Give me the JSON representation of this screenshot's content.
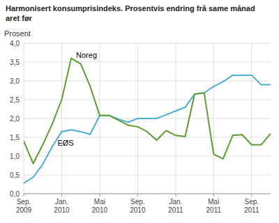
{
  "chart_data": {
    "type": "line",
    "title": "Harmonisert konsumprisindeks. Prosentvis endring frå same månad\naret før",
    "y_label": "Prosent",
    "categories": [
      "Sep.\n2009",
      null,
      null,
      null,
      "Jan.\n2010",
      null,
      null,
      null,
      "Mai\n2010",
      null,
      null,
      null,
      "Sep.\n2010",
      null,
      null,
      null,
      "Jan.\n2011",
      null,
      null,
      null,
      "Mai\n2011",
      null,
      null,
      null,
      "Sep.\n2011",
      null,
      null
    ],
    "series": [
      {
        "name": "EØS",
        "color": "#4bacd6",
        "values": [
          0.28,
          0.44,
          0.78,
          1.25,
          1.65,
          1.7,
          1.65,
          1.58,
          2.08,
          2.08,
          1.98,
          1.9,
          2.0,
          2.0,
          2.0,
          2.1,
          2.2,
          2.3,
          2.65,
          2.68,
          2.85,
          2.98,
          3.15,
          3.15,
          3.15,
          2.9,
          2.9
        ]
      },
      {
        "name": "Noreg",
        "color": "#5a9e2f",
        "values": [
          1.4,
          0.8,
          1.3,
          1.85,
          2.5,
          3.6,
          3.45,
          2.85,
          2.08,
          2.08,
          1.95,
          1.82,
          1.78,
          1.65,
          1.42,
          1.68,
          1.55,
          1.52,
          2.65,
          2.68,
          1.05,
          0.93,
          1.55,
          1.57,
          1.3,
          1.3,
          1.6
        ]
      }
    ],
    "ylim": [
      0.0,
      4.0
    ],
    "yticks": [
      {
        "value": 0.0,
        "label": "0,0"
      },
      {
        "value": 0.5,
        "label": "0,5"
      },
      {
        "value": 1.0,
        "label": "1,0"
      },
      {
        "value": 1.5,
        "label": "1,5"
      },
      {
        "value": 2.0,
        "label": "2,0"
      },
      {
        "value": 2.5,
        "label": "2,5"
      },
      {
        "value": 3.0,
        "label": "3,0"
      },
      {
        "value": 3.5,
        "label": "3,5"
      },
      {
        "value": 4.0,
        "label": "4,0"
      }
    ],
    "grid": true
  }
}
